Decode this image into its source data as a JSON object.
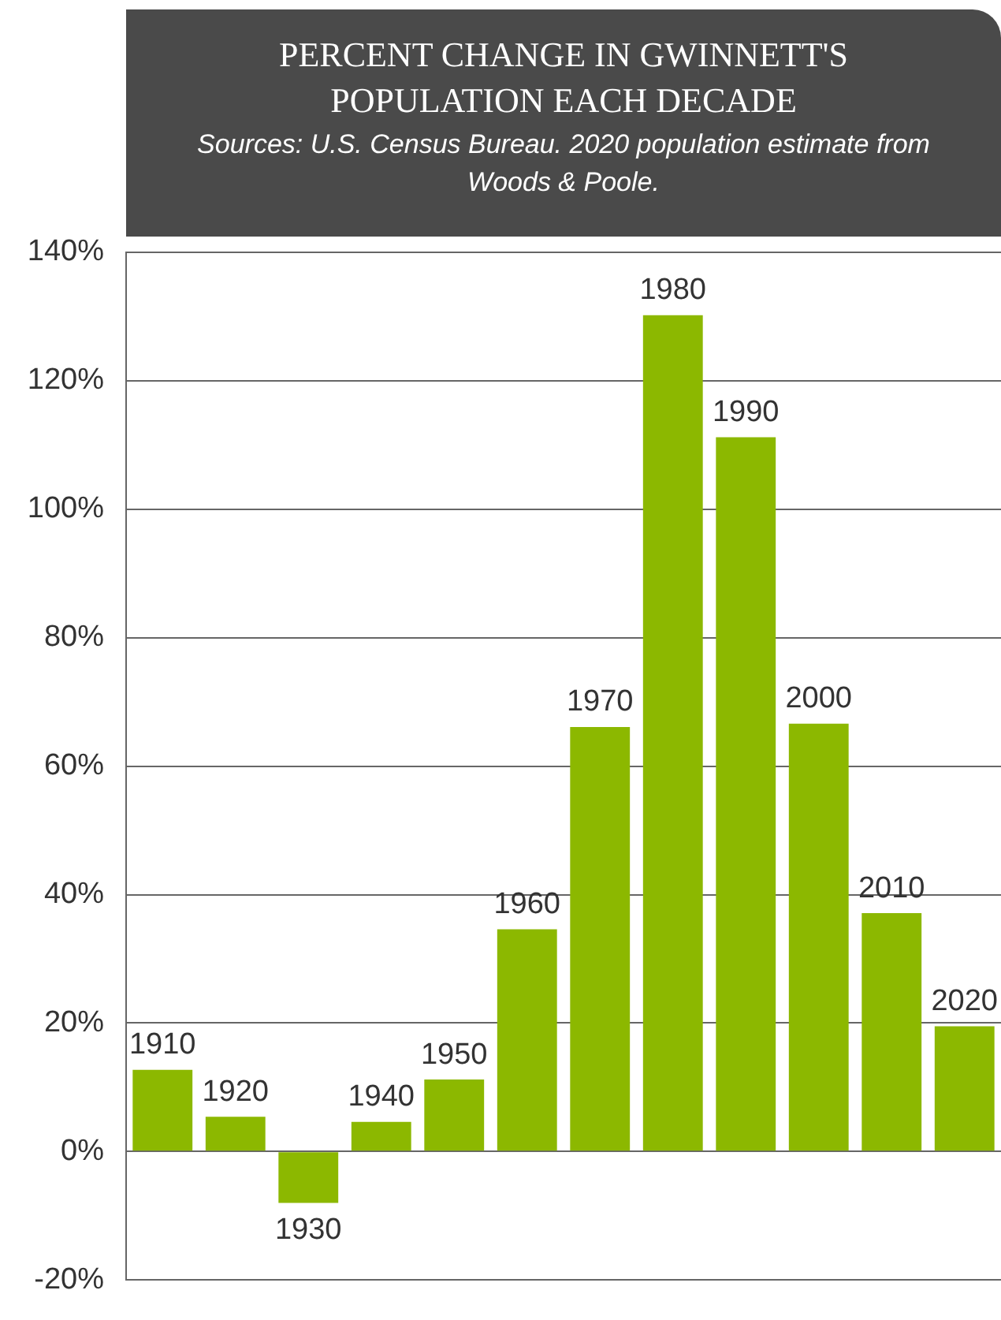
{
  "chart_data": {
    "type": "bar",
    "title": "PERCENT CHANGE IN GWINNETT'S POPULATION EACH DECADE",
    "subtitle": "Sources: U.S. Census Bureau. 2020 population estimate from Woods & Poole.",
    "categories": [
      "1910",
      "1920",
      "1930",
      "1940",
      "1950",
      "1960",
      "1970",
      "1980",
      "1990",
      "2000",
      "2010",
      "2020"
    ],
    "values": [
      12.7,
      5.4,
      -8.0,
      4.6,
      11.2,
      34.6,
      66.1,
      130.2,
      111.2,
      66.6,
      37.1,
      19.5
    ],
    "color": "#8cb800",
    "ylim": [
      -20,
      140
    ],
    "yticks": [
      {
        "value": -20,
        "label": "-20%"
      },
      {
        "value": 0,
        "label": "0%"
      },
      {
        "value": 20,
        "label": "20%"
      },
      {
        "value": 40,
        "label": "40%"
      },
      {
        "value": 60,
        "label": "60%"
      },
      {
        "value": 80,
        "label": "80%"
      },
      {
        "value": 100,
        "label": "100%"
      },
      {
        "value": 120,
        "label": "120%"
      },
      {
        "value": 140,
        "label": "140%"
      }
    ],
    "grid": "y",
    "tick_labels": "y",
    "legend": false
  }
}
